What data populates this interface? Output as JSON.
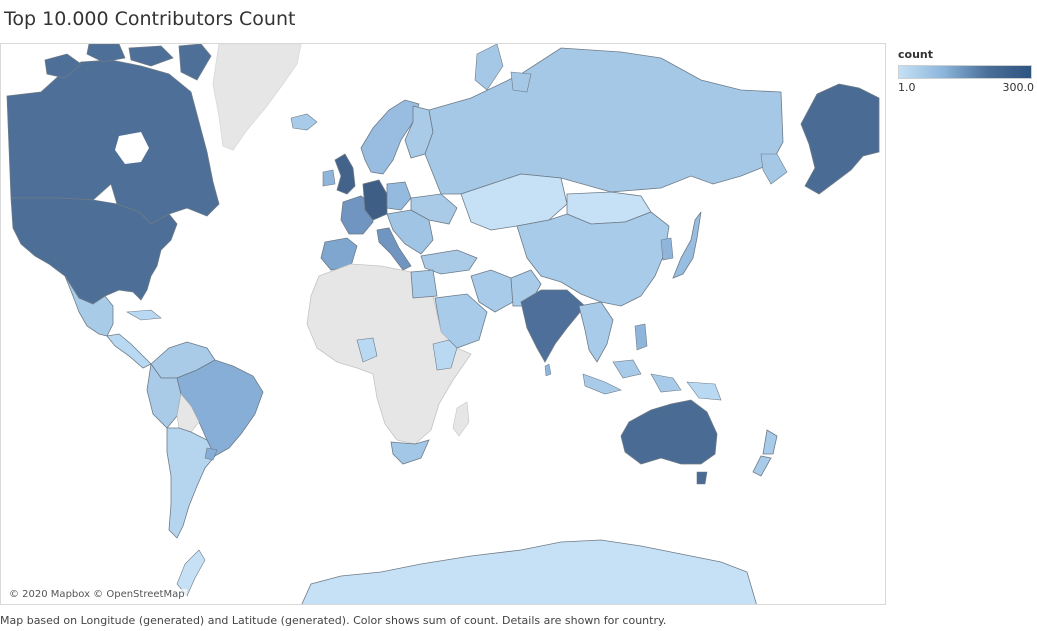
{
  "title": "Top 10.000 Contributors Count",
  "legend": {
    "title": "count",
    "min_label": "1.0",
    "max_label": "300.0",
    "min": 1.0,
    "max": 300.0,
    "color_low": "#c5e0f5",
    "color_high": "#2f5480"
  },
  "attribution": "© 2020 Mapbox © OpenStreetMap",
  "caption": "Map based on Longitude (generated) and Latitude (generated).  Color shows sum of count.  Details are shown for country.",
  "colors": {
    "no_data": "#e8e8e8",
    "border": "#6e7b88",
    "ocean": "#ffffff"
  },
  "countries": [
    {
      "name": "Canada",
      "level": "high"
    },
    {
      "name": "United States",
      "level": "high"
    },
    {
      "name": "Alaska",
      "level": "high"
    },
    {
      "name": "Australia",
      "level": "high"
    },
    {
      "name": "United Kingdom",
      "level": "high"
    },
    {
      "name": "Germany",
      "level": "high"
    },
    {
      "name": "India",
      "level": "high"
    },
    {
      "name": "Brazil",
      "level": "medium"
    },
    {
      "name": "France",
      "level": "medium"
    },
    {
      "name": "Spain",
      "level": "medium"
    },
    {
      "name": "Russia",
      "level": "low"
    },
    {
      "name": "China",
      "level": "low"
    },
    {
      "name": "Mexico",
      "level": "low"
    },
    {
      "name": "Argentina",
      "level": "low"
    },
    {
      "name": "South Africa",
      "level": "low"
    },
    {
      "name": "Egypt",
      "level": "low"
    },
    {
      "name": "Iran",
      "level": "low"
    },
    {
      "name": "Kazakhstan",
      "level": "lowest"
    },
    {
      "name": "Saudi Arabia",
      "level": "low"
    },
    {
      "name": "Japan",
      "level": "low"
    },
    {
      "name": "New Zealand",
      "level": "low"
    },
    {
      "name": "Greenland",
      "level": "none"
    },
    {
      "name": "Antarctica",
      "level": "lowest"
    }
  ]
}
